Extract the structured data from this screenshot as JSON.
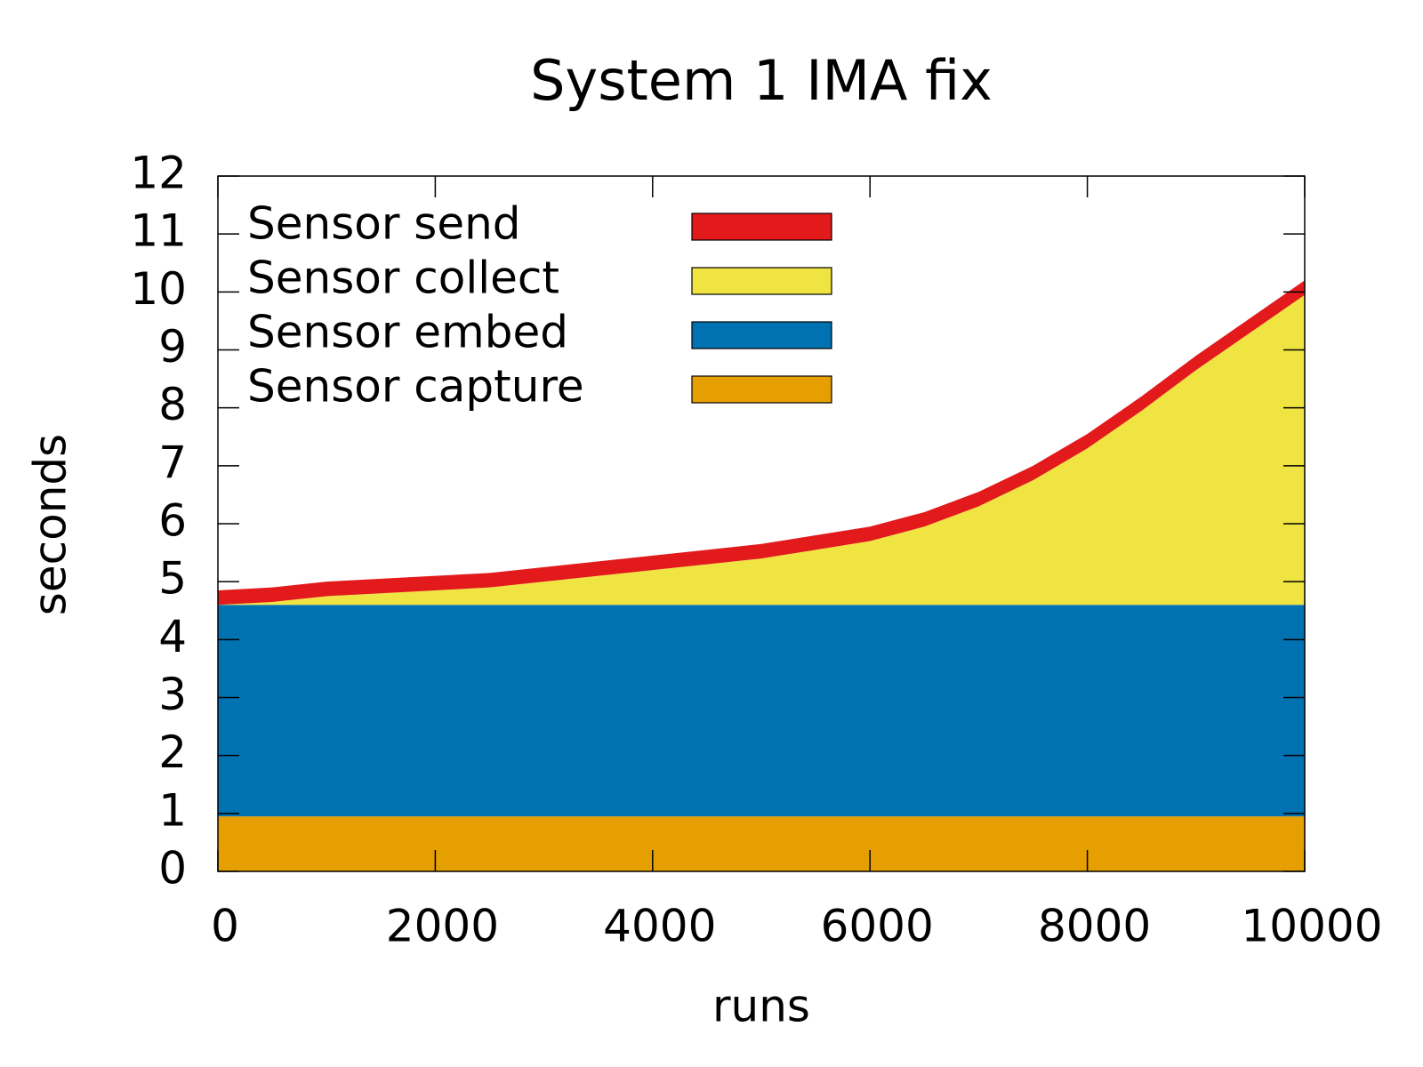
{
  "chart_data": {
    "type": "stacked-area",
    "title": "System 1 IMA fix",
    "xlabel": "runs",
    "ylabel": "seconds",
    "x": [
      0,
      500,
      1000,
      1500,
      2000,
      2500,
      3000,
      3500,
      4000,
      4500,
      5000,
      5500,
      6000,
      6500,
      7000,
      7500,
      8000,
      8500,
      9000,
      9500,
      10000
    ],
    "series": [
      {
        "name": "Sensor send",
        "color": "#e31a1c",
        "values": [
          0.25,
          0.25,
          0.25,
          0.25,
          0.25,
          0.25,
          0.25,
          0.25,
          0.25,
          0.25,
          0.25,
          0.25,
          0.25,
          0.25,
          0.25,
          0.25,
          0.25,
          0.25,
          0.25,
          0.25,
          0.25
        ]
      },
      {
        "name": "Sensor collect",
        "color": "#f0e442",
        "values": [
          0.0,
          0.05,
          0.15,
          0.2,
          0.25,
          0.3,
          0.4,
          0.5,
          0.6,
          0.7,
          0.8,
          0.95,
          1.1,
          1.35,
          1.7,
          2.15,
          2.7,
          3.35,
          4.05,
          4.7,
          5.35
        ]
      },
      {
        "name": "Sensor embed",
        "color": "#0072b2",
        "values": [
          3.65,
          3.65,
          3.65,
          3.65,
          3.65,
          3.65,
          3.65,
          3.65,
          3.65,
          3.65,
          3.65,
          3.65,
          3.65,
          3.65,
          3.65,
          3.65,
          3.65,
          3.65,
          3.65,
          3.65,
          3.65
        ]
      },
      {
        "name": "Sensor capture",
        "color": "#e69f00",
        "values": [
          0.95,
          0.95,
          0.95,
          0.95,
          0.95,
          0.95,
          0.95,
          0.95,
          0.95,
          0.95,
          0.95,
          0.95,
          0.95,
          0.95,
          0.95,
          0.95,
          0.95,
          0.95,
          0.95,
          0.95,
          0.95
        ]
      }
    ],
    "xlim": [
      0,
      10000
    ],
    "xticks": [
      0,
      2000,
      4000,
      6000,
      8000,
      10000
    ],
    "ylim": [
      0,
      12
    ],
    "yticks": [
      0,
      1,
      2,
      3,
      4,
      5,
      6,
      7,
      8,
      9,
      10,
      11,
      12
    ],
    "legend": "upper-left"
  }
}
